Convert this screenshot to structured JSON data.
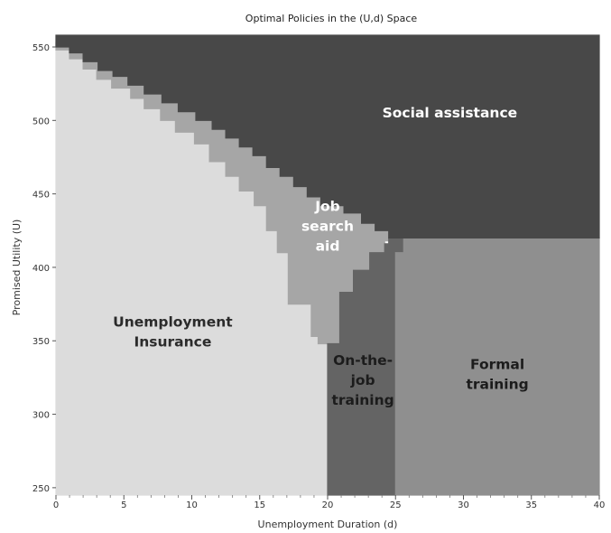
{
  "chart_data": {
    "type": "heatmap",
    "title": "Optimal Policies in the (U,d) Space",
    "xlabel": "Unemployment Duration (d)",
    "ylabel": "Promised Utility (U)",
    "xlim": [
      0,
      40
    ],
    "ylim": [
      245,
      558
    ],
    "xticks": [
      0,
      5,
      10,
      15,
      20,
      25,
      30,
      35,
      40
    ],
    "yticks": [
      250,
      300,
      350,
      400,
      450,
      500,
      550
    ],
    "grid": false,
    "legend": "none",
    "regions": [
      {
        "name": "Unemployment Insurance",
        "label_lines": [
          "Unemployment",
          "Insurance"
        ],
        "color": "#dcdcdc",
        "label_color": "#2b2b2b",
        "label_at": [
          8.6,
          356
        ],
        "boundary": [
          [
            0,
            245
          ],
          [
            20,
            245
          ],
          [
            20,
            348
          ],
          [
            19.3,
            348
          ],
          [
            19.3,
            353
          ],
          [
            18.8,
            353
          ],
          [
            18.8,
            375
          ],
          [
            17.1,
            375
          ],
          [
            17.1,
            410
          ],
          [
            16.3,
            410
          ],
          [
            16.3,
            425
          ],
          [
            15.5,
            425
          ],
          [
            15.5,
            442
          ],
          [
            14.6,
            442
          ],
          [
            14.6,
            452
          ],
          [
            13.5,
            452
          ],
          [
            13.5,
            462
          ],
          [
            12.5,
            462
          ],
          [
            12.5,
            472
          ],
          [
            11.3,
            472
          ],
          [
            11.3,
            484
          ],
          [
            10.2,
            484
          ],
          [
            10.2,
            492
          ],
          [
            8.8,
            492
          ],
          [
            8.8,
            500
          ],
          [
            7.7,
            500
          ],
          [
            7.7,
            508
          ],
          [
            6.5,
            508
          ],
          [
            6.5,
            515
          ],
          [
            5.5,
            515
          ],
          [
            5.5,
            522
          ],
          [
            4.1,
            522
          ],
          [
            4.1,
            528
          ],
          [
            3,
            528
          ],
          [
            3,
            535
          ],
          [
            2,
            535
          ],
          [
            2,
            542
          ],
          [
            1,
            542
          ],
          [
            1,
            548
          ],
          [
            0,
            548
          ]
        ]
      },
      {
        "name": "Job search aid",
        "label_lines": [
          "Job",
          "search",
          "aid"
        ],
        "color": "#a6a6a6",
        "label_color": "#ffffff",
        "label_at": [
          20,
          428
        ],
        "boundary": [
          [
            0,
            548
          ],
          [
            1,
            548
          ],
          [
            1,
            542
          ],
          [
            2,
            542
          ],
          [
            2,
            535
          ],
          [
            3,
            535
          ],
          [
            3,
            528
          ],
          [
            4.1,
            528
          ],
          [
            4.1,
            522
          ],
          [
            5.5,
            522
          ],
          [
            5.5,
            515
          ],
          [
            6.5,
            515
          ],
          [
            6.5,
            508
          ],
          [
            7.7,
            508
          ],
          [
            7.7,
            500
          ],
          [
            8.8,
            500
          ],
          [
            8.8,
            492
          ],
          [
            10.2,
            492
          ],
          [
            10.2,
            484
          ],
          [
            11.3,
            484
          ],
          [
            11.3,
            472
          ],
          [
            12.5,
            472
          ],
          [
            12.5,
            462
          ],
          [
            13.5,
            462
          ],
          [
            13.5,
            452
          ],
          [
            14.6,
            452
          ],
          [
            14.6,
            442
          ],
          [
            15.5,
            442
          ],
          [
            15.5,
            425
          ],
          [
            16.3,
            425
          ],
          [
            16.3,
            410
          ],
          [
            17.1,
            410
          ],
          [
            17.1,
            375
          ],
          [
            18.8,
            375
          ],
          [
            18.8,
            353
          ],
          [
            19.3,
            353
          ],
          [
            19.3,
            348
          ],
          [
            20.9,
            348
          ],
          [
            20.9,
            383
          ],
          [
            21.9,
            383
          ],
          [
            21.9,
            398
          ],
          [
            23.1,
            398
          ],
          [
            23.1,
            410
          ],
          [
            24.2,
            410
          ],
          [
            24.2,
            418
          ],
          [
            25,
            418
          ],
          [
            25,
            425
          ],
          [
            24.5,
            425
          ],
          [
            24.5,
            430
          ],
          [
            23.5,
            430
          ],
          [
            23.5,
            437
          ],
          [
            22.5,
            437
          ],
          [
            22.5,
            442
          ],
          [
            21.2,
            442
          ],
          [
            21.2,
            448
          ],
          [
            19.5,
            448
          ],
          [
            19.5,
            455
          ],
          [
            18.5,
            455
          ],
          [
            18.5,
            462
          ],
          [
            17.5,
            462
          ],
          [
            17.5,
            468
          ],
          [
            16.5,
            468
          ],
          [
            16.5,
            476
          ],
          [
            15.5,
            476
          ],
          [
            15.5,
            482
          ],
          [
            14.5,
            482
          ],
          [
            14.5,
            488
          ],
          [
            13.5,
            488
          ],
          [
            13.5,
            494
          ],
          [
            12.5,
            494
          ],
          [
            12.5,
            500
          ],
          [
            11.5,
            500
          ],
          [
            11.5,
            506
          ],
          [
            10.3,
            506
          ],
          [
            10.3,
            512
          ],
          [
            9,
            512
          ],
          [
            9,
            518
          ],
          [
            7.8,
            518
          ],
          [
            7.8,
            524
          ],
          [
            6.5,
            524
          ],
          [
            6.5,
            530
          ],
          [
            5.3,
            530
          ],
          [
            5.3,
            534
          ],
          [
            4.2,
            534
          ],
          [
            4.2,
            540
          ],
          [
            3.1,
            540
          ],
          [
            3.1,
            546
          ],
          [
            2,
            546
          ],
          [
            2,
            550
          ],
          [
            1,
            550
          ],
          [
            1,
            553
          ],
          [
            0,
            553
          ]
        ]
      },
      {
        "name": "On-the-job training",
        "label_lines": [
          "On-the-",
          "job",
          "training"
        ],
        "color": "#646464",
        "label_color": "#1c1c1c",
        "label_at": [
          22.6,
          323
        ],
        "boundary": [
          [
            20,
            245
          ],
          [
            25,
            245
          ],
          [
            25,
            410
          ],
          [
            25.6,
            410
          ],
          [
            25.6,
            420
          ],
          [
            24.5,
            420
          ],
          [
            24.5,
            416
          ],
          [
            24.2,
            416
          ],
          [
            24.2,
            410
          ],
          [
            23.1,
            410
          ],
          [
            23.1,
            398
          ],
          [
            21.9,
            398
          ],
          [
            21.9,
            383
          ],
          [
            20.9,
            383
          ],
          [
            20.9,
            348
          ],
          [
            20,
            348
          ]
        ]
      },
      {
        "name": "Formal training",
        "label_lines": [
          "Formal",
          "training"
        ],
        "color": "#8f8f8f",
        "label_color": "#1c1c1c",
        "label_at": [
          32.5,
          327
        ],
        "boundary": [
          [
            25,
            245
          ],
          [
            40,
            245
          ],
          [
            40,
            420
          ],
          [
            25.6,
            420
          ],
          [
            25.6,
            410
          ],
          [
            25,
            410
          ]
        ]
      },
      {
        "name": "Social assistance",
        "label_lines": [
          "Social assistance"
        ],
        "color": "#484848",
        "label_color": "#ffffff",
        "label_at": [
          29,
          505
        ],
        "boundary": [
          [
            0,
            558
          ],
          [
            40,
            558
          ],
          [
            40,
            420
          ],
          [
            24.5,
            420
          ],
          [
            24.5,
            425
          ],
          [
            23.5,
            425
          ],
          [
            23.5,
            430
          ],
          [
            22.5,
            430
          ],
          [
            22.5,
            437
          ],
          [
            21.2,
            437
          ],
          [
            21.2,
            442
          ],
          [
            19.5,
            442
          ],
          [
            19.5,
            448
          ],
          [
            18.5,
            448
          ],
          [
            18.5,
            455
          ],
          [
            17.5,
            455
          ],
          [
            17.5,
            462
          ],
          [
            16.5,
            462
          ],
          [
            16.5,
            468
          ],
          [
            15.5,
            468
          ],
          [
            15.5,
            476
          ],
          [
            14.5,
            476
          ],
          [
            14.5,
            482
          ],
          [
            13.5,
            482
          ],
          [
            13.5,
            488
          ],
          [
            12.5,
            488
          ],
          [
            12.5,
            494
          ],
          [
            11.5,
            494
          ],
          [
            11.5,
            500
          ],
          [
            10.3,
            500
          ],
          [
            10.3,
            506
          ],
          [
            9,
            506
          ],
          [
            9,
            512
          ],
          [
            7.8,
            512
          ],
          [
            7.8,
            518
          ],
          [
            6.5,
            518
          ],
          [
            6.5,
            524
          ],
          [
            5.3,
            524
          ],
          [
            5.3,
            530
          ],
          [
            4.2,
            530
          ],
          [
            4.2,
            534
          ],
          [
            3.1,
            534
          ],
          [
            3.1,
            540
          ],
          [
            2,
            540
          ],
          [
            2,
            546
          ],
          [
            1,
            546
          ],
          [
            1,
            550
          ],
          [
            0,
            550
          ]
        ]
      }
    ]
  }
}
